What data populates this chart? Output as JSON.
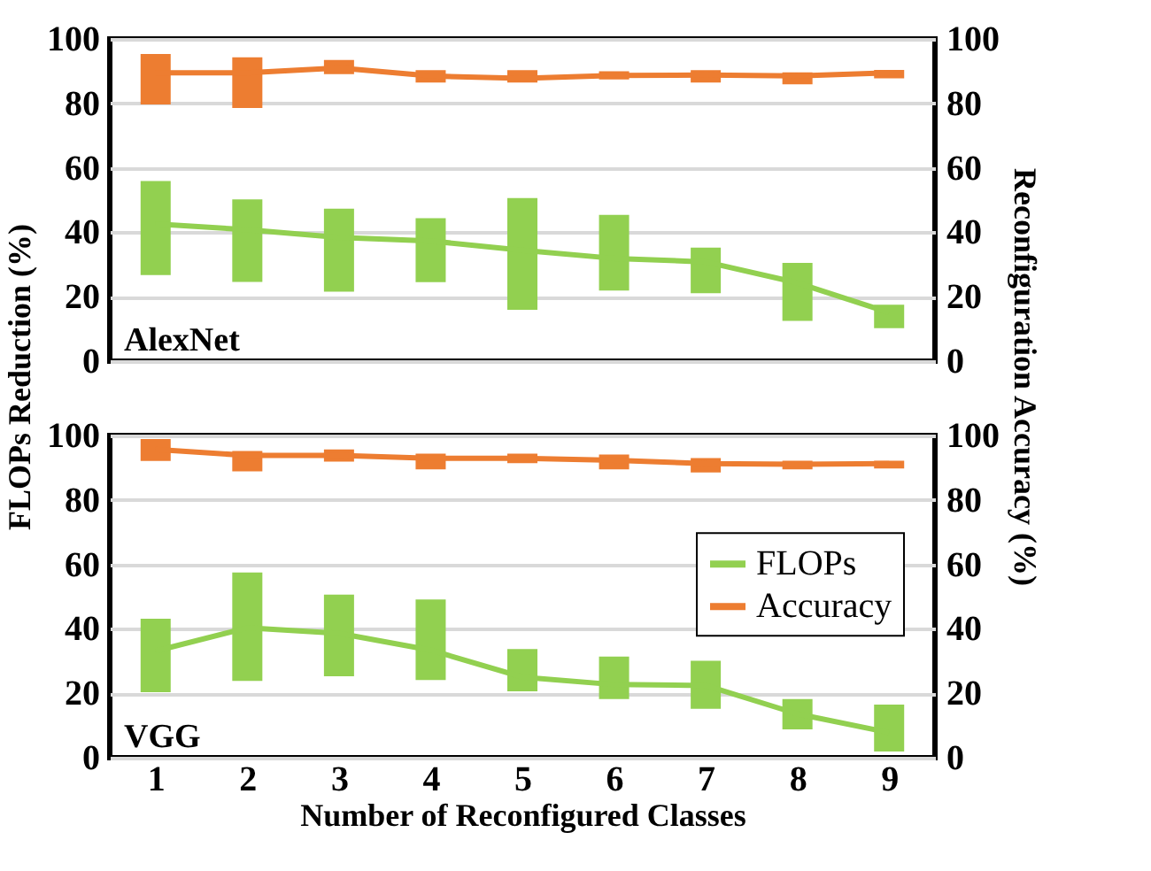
{
  "chart_data": [
    {
      "type": "line",
      "annotations": [
        "AlexNet"
      ],
      "categories": [
        "1",
        "2",
        "3",
        "4",
        "5",
        "6",
        "7",
        "8",
        "9"
      ],
      "ylabel": "FLOPs Reduction (%)",
      "y2label": "Reconfiguration Accuracy (%)",
      "ylim": [
        0,
        100
      ],
      "yticks": [
        0,
        20,
        40,
        60,
        80,
        100
      ],
      "y2lim": [
        0,
        100
      ],
      "y2ticks": [
        0,
        20,
        40,
        60,
        80,
        100
      ],
      "grid": "y",
      "legend": false,
      "tick_labels": "y",
      "marker": "none",
      "line_style": "solid",
      "series": [
        {
          "color": "#92d050",
          "values": [
            42.6,
            40.8,
            38.4,
            37.3,
            34.4,
            31.9,
            30.8,
            24.3,
            15.1
          ],
          "errors": [
            [
              26.7,
              55.9
            ],
            [
              24.6,
              50.2
            ],
            [
              21.6,
              47.3
            ],
            [
              24.5,
              44.4
            ],
            [
              15.9,
              50.6
            ],
            [
              21.9,
              45.4
            ],
            [
              21.1,
              35.2
            ],
            [
              12.5,
              30.5
            ],
            [
              10.2,
              17.5
            ]
          ]
        },
        {
          "color": "#ed7d31",
          "axis": "y2",
          "values": [
            89.5,
            89.5,
            91.0,
            88.5,
            87.8,
            88.7,
            88.8,
            88.5,
            89.5
          ],
          "errors": [
            [
              79.7,
              95.3
            ],
            [
              78.6,
              94.3
            ],
            [
              89.1,
              93.5
            ],
            [
              86.5,
              90.3
            ],
            [
              86.5,
              90.3
            ],
            [
              87.4,
              90.0
            ],
            [
              86.5,
              90.3
            ],
            [
              85.9,
              89.6
            ],
            [
              87.8,
              90.4
            ]
          ]
        }
      ]
    },
    {
      "type": "line",
      "annotations": [
        "VGG"
      ],
      "categories": [
        "1",
        "2",
        "3",
        "4",
        "5",
        "6",
        "7",
        "8",
        "9"
      ],
      "xlabel": "Number of Reconfigured Classes",
      "ylim": [
        0,
        100
      ],
      "yticks": [
        0,
        20,
        40,
        60,
        80,
        100
      ],
      "y2lim": [
        0,
        100
      ],
      "y2ticks": [
        0,
        20,
        40,
        60,
        80,
        100
      ],
      "grid": "y",
      "legend": "right",
      "marker": "none",
      "line_style": "solid",
      "series": [
        {
          "name": "FLOPs",
          "color": "#92d050",
          "values": [
            33.1,
            40.3,
            38.6,
            33.4,
            25.0,
            22.7,
            22.4,
            13.6,
            7.8
          ],
          "errors": [
            [
              20.3,
              43.1
            ],
            [
              23.8,
              57.5
            ],
            [
              25.3,
              50.6
            ],
            [
              24.1,
              49.1
            ],
            [
              20.6,
              33.7
            ],
            [
              18.2,
              31.4
            ],
            [
              15.2,
              30.1
            ],
            [
              8.8,
              18.2
            ],
            [
              1.9,
              16.5
            ]
          ]
        },
        {
          "name": "Accuracy",
          "color": "#ed7d31",
          "axis": "y2",
          "values": [
            95.7,
            93.8,
            93.8,
            92.9,
            92.9,
            92.3,
            91.3,
            91.1,
            91.3
          ],
          "errors": [
            [
              92.1,
              98.9
            ],
            [
              88.9,
              95.2
            ],
            [
              91.9,
              95.7
            ],
            [
              89.5,
              94.4
            ],
            [
              91.4,
              94.4
            ],
            [
              89.5,
              94.1
            ],
            [
              88.5,
              93.0
            ],
            [
              89.5,
              92.2
            ],
            [
              89.8,
              92.2
            ]
          ]
        }
      ]
    }
  ]
}
